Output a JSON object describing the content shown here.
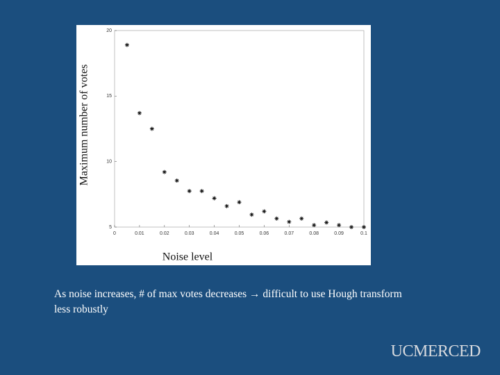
{
  "chart_data": {
    "type": "scatter",
    "xlabel": "Noise level",
    "ylabel": "Maximum number of votes",
    "x": [
      0.005,
      0.01,
      0.015,
      0.02,
      0.025,
      0.03,
      0.035,
      0.04,
      0.045,
      0.05,
      0.055,
      0.06,
      0.065,
      0.07,
      0.075,
      0.08,
      0.085,
      0.09,
      0.095,
      0.1
    ],
    "values": [
      18.9,
      13.7,
      12.5,
      9.2,
      8.55,
      7.75,
      7.75,
      7.2,
      6.6,
      6.9,
      5.95,
      6.2,
      5.65,
      5.4,
      5.65,
      5.15,
      5.35,
      5.15,
      5.0,
      5.0
    ],
    "color": "#111111",
    "xlim": [
      0,
      0.1
    ],
    "xticks": [
      0,
      0.01,
      0.02,
      0.03,
      0.04,
      0.05,
      0.06,
      0.07,
      0.08,
      0.09,
      0.1
    ],
    "ylim": [
      5,
      20
    ],
    "yticks": [
      5,
      10,
      15,
      20
    ]
  },
  "caption": "As noise increases, # of max votes decreases → difficult to use Hough transform less robustly",
  "logo": "UCMERCED"
}
